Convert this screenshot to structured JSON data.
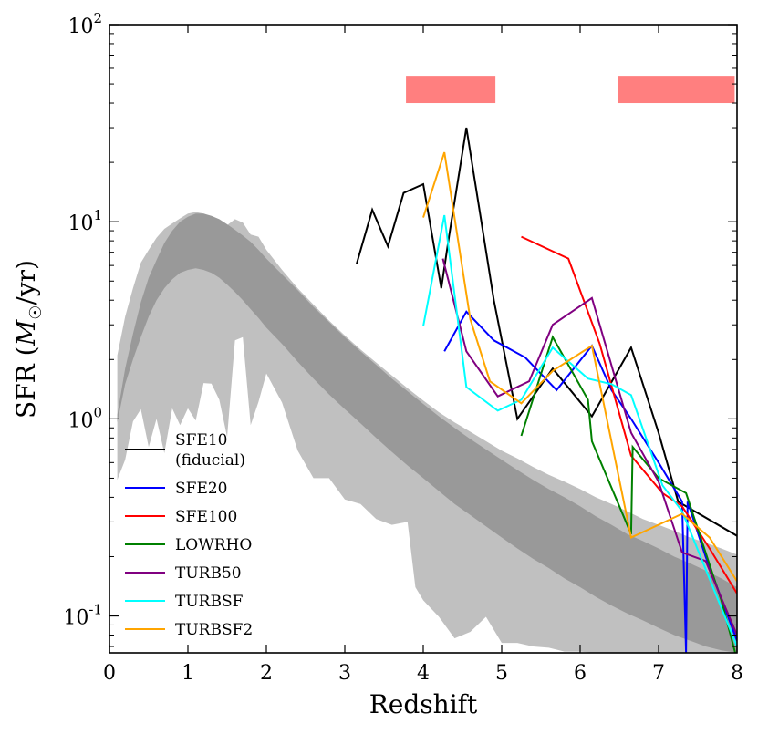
{
  "chart_data": {
    "type": "line",
    "title": "",
    "xlabel": "Redshift",
    "ylabel": "SFR (M☉/yr)",
    "ylabel_parts": {
      "prefix": "SFR",
      "open": "(",
      "symbol": "M",
      "subscript": "☉",
      "unit": "/yr)"
    },
    "xlim": [
      0,
      8
    ],
    "ylim": [
      0.065,
      100
    ],
    "yscale": "log",
    "grid": false,
    "legend_position": "lower-left",
    "x_ticks": [
      {
        "value": 0,
        "label": "0"
      },
      {
        "value": 1,
        "label": "1"
      },
      {
        "value": 2,
        "label": "2"
      },
      {
        "value": 3,
        "label": "3"
      },
      {
        "value": 4,
        "label": "4"
      },
      {
        "value": 5,
        "label": "5"
      },
      {
        "value": 6,
        "label": "6"
      },
      {
        "value": 7,
        "label": "7"
      },
      {
        "value": 8,
        "label": "8"
      }
    ],
    "y_ticks": [
      {
        "value": 0.1,
        "base": "10",
        "exp": "-1"
      },
      {
        "value": 1,
        "base": "10",
        "exp": "0"
      },
      {
        "value": 10,
        "base": "10",
        "exp": "1"
      },
      {
        "value": 100,
        "base": "10",
        "exp": "2"
      }
    ],
    "observation_bars": [
      {
        "x0": 3.78,
        "x1": 4.92,
        "y_low": 40,
        "y_high": 55,
        "color": "#ff7f7f"
      },
      {
        "x0": 6.48,
        "x1": 7.97,
        "y_low": 40,
        "y_high": 55,
        "color": "#ff7f7f"
      }
    ],
    "bands": [
      {
        "name": "outer-band",
        "color": "#c0c0c0",
        "upper": [
          [
            0.1,
            2.1
          ],
          [
            0.2,
            3.3
          ],
          [
            0.3,
            4.6
          ],
          [
            0.4,
            6.2
          ],
          [
            0.5,
            7.2
          ],
          [
            0.6,
            8.3
          ],
          [
            0.7,
            9.2
          ],
          [
            0.8,
            9.8
          ],
          [
            0.9,
            10.4
          ],
          [
            1.0,
            11.0
          ],
          [
            1.1,
            11.2
          ],
          [
            1.2,
            11.0
          ],
          [
            1.3,
            10.6
          ],
          [
            1.4,
            10.0
          ],
          [
            1.5,
            9.6
          ],
          [
            1.6,
            10.3
          ],
          [
            1.7,
            9.9
          ],
          [
            1.8,
            8.6
          ],
          [
            1.9,
            8.4
          ],
          [
            2.0,
            7.2
          ],
          [
            2.2,
            5.7
          ],
          [
            2.4,
            4.6
          ],
          [
            2.6,
            3.8
          ],
          [
            2.8,
            3.15
          ],
          [
            3.0,
            2.65
          ],
          [
            3.2,
            2.25
          ],
          [
            3.4,
            1.93
          ],
          [
            3.6,
            1.66
          ],
          [
            3.8,
            1.43
          ],
          [
            4.0,
            1.24
          ],
          [
            4.2,
            1.08
          ],
          [
            4.4,
            0.96
          ],
          [
            4.6,
            0.86
          ],
          [
            4.8,
            0.77
          ],
          [
            5.0,
            0.69
          ],
          [
            5.2,
            0.63
          ],
          [
            5.4,
            0.57
          ],
          [
            5.6,
            0.52
          ],
          [
            5.8,
            0.48
          ],
          [
            6.0,
            0.44
          ],
          [
            6.2,
            0.4
          ],
          [
            6.4,
            0.37
          ],
          [
            6.6,
            0.34
          ],
          [
            6.8,
            0.31
          ],
          [
            7.0,
            0.29
          ],
          [
            7.2,
            0.27
          ],
          [
            7.4,
            0.25
          ],
          [
            7.6,
            0.235
          ],
          [
            7.8,
            0.22
          ],
          [
            8.0,
            0.205
          ]
        ],
        "lower": [
          [
            0.1,
            0.49
          ],
          [
            0.2,
            0.62
          ],
          [
            0.3,
            0.97
          ],
          [
            0.4,
            1.12
          ],
          [
            0.5,
            0.72
          ],
          [
            0.6,
            1.0
          ],
          [
            0.7,
            0.67
          ],
          [
            0.8,
            1.13
          ],
          [
            0.9,
            0.93
          ],
          [
            1.0,
            1.13
          ],
          [
            1.1,
            0.98
          ],
          [
            1.2,
            1.52
          ],
          [
            1.3,
            1.51
          ],
          [
            1.4,
            1.25
          ],
          [
            1.5,
            0.81
          ],
          [
            1.6,
            2.5
          ],
          [
            1.7,
            2.6
          ],
          [
            1.8,
            0.93
          ],
          [
            1.9,
            1.22
          ],
          [
            2.0,
            1.7
          ],
          [
            2.2,
            1.21
          ],
          [
            2.4,
            0.69
          ],
          [
            2.6,
            0.5
          ],
          [
            2.8,
            0.5
          ],
          [
            3.0,
            0.39
          ],
          [
            3.2,
            0.37
          ],
          [
            3.4,
            0.31
          ],
          [
            3.6,
            0.29
          ],
          [
            3.8,
            0.3
          ],
          [
            3.9,
            0.14
          ],
          [
            4.0,
            0.12
          ],
          [
            4.2,
            0.099
          ],
          [
            4.4,
            0.077
          ],
          [
            4.6,
            0.083
          ],
          [
            4.8,
            0.099
          ],
          [
            5.0,
            0.073
          ],
          [
            5.2,
            0.073
          ],
          [
            5.4,
            0.07
          ],
          [
            5.6,
            0.069
          ],
          [
            5.8,
            0.066
          ],
          [
            6.0,
            0.066
          ],
          [
            6.2,
            0.065
          ],
          [
            6.4,
            0.065
          ],
          [
            6.6,
            0.065
          ],
          [
            7.0,
            0.065
          ],
          [
            8.0,
            0.065
          ]
        ]
      },
      {
        "name": "inner-band",
        "color": "#999999",
        "upper": [
          [
            0.1,
            1.05
          ],
          [
            0.2,
            1.8
          ],
          [
            0.3,
            2.7
          ],
          [
            0.4,
            3.9
          ],
          [
            0.5,
            5.2
          ],
          [
            0.6,
            6.4
          ],
          [
            0.7,
            7.8
          ],
          [
            0.8,
            9.0
          ],
          [
            0.9,
            10.0
          ],
          [
            1.0,
            10.6
          ],
          [
            1.1,
            11.0
          ],
          [
            1.2,
            11.0
          ],
          [
            1.3,
            10.7
          ],
          [
            1.4,
            10.3
          ],
          [
            1.5,
            9.7
          ],
          [
            1.6,
            9.1
          ],
          [
            1.7,
            8.5
          ],
          [
            1.8,
            7.9
          ],
          [
            1.9,
            7.2
          ],
          [
            2.0,
            6.5
          ],
          [
            2.2,
            5.4
          ],
          [
            2.4,
            4.5
          ],
          [
            2.6,
            3.7
          ],
          [
            2.8,
            3.1
          ],
          [
            3.0,
            2.6
          ],
          [
            3.2,
            2.2
          ],
          [
            3.4,
            1.88
          ],
          [
            3.6,
            1.6
          ],
          [
            3.8,
            1.38
          ],
          [
            4.0,
            1.19
          ],
          [
            4.2,
            1.03
          ],
          [
            4.4,
            0.9
          ],
          [
            4.6,
            0.79
          ],
          [
            4.8,
            0.7
          ],
          [
            5.0,
            0.62
          ],
          [
            5.2,
            0.55
          ],
          [
            5.4,
            0.49
          ],
          [
            5.6,
            0.44
          ],
          [
            5.8,
            0.4
          ],
          [
            6.0,
            0.36
          ],
          [
            6.2,
            0.32
          ],
          [
            6.4,
            0.29
          ],
          [
            6.6,
            0.26
          ],
          [
            6.8,
            0.24
          ],
          [
            7.0,
            0.22
          ],
          [
            7.2,
            0.2
          ],
          [
            7.4,
            0.185
          ],
          [
            7.6,
            0.17
          ],
          [
            7.8,
            0.155
          ],
          [
            8.0,
            0.14
          ]
        ],
        "lower": [
          [
            0.1,
            0.96
          ],
          [
            0.2,
            1.5
          ],
          [
            0.3,
            2.0
          ],
          [
            0.4,
            2.6
          ],
          [
            0.5,
            3.3
          ],
          [
            0.6,
            4.0
          ],
          [
            0.7,
            4.6
          ],
          [
            0.8,
            5.1
          ],
          [
            0.9,
            5.5
          ],
          [
            1.0,
            5.7
          ],
          [
            1.1,
            5.8
          ],
          [
            1.2,
            5.7
          ],
          [
            1.3,
            5.5
          ],
          [
            1.4,
            5.2
          ],
          [
            1.5,
            4.8
          ],
          [
            1.6,
            4.4
          ],
          [
            1.7,
            4.0
          ],
          [
            1.8,
            3.6
          ],
          [
            1.9,
            3.25
          ],
          [
            2.0,
            2.9
          ],
          [
            2.2,
            2.4
          ],
          [
            2.4,
            1.95
          ],
          [
            2.6,
            1.6
          ],
          [
            2.8,
            1.33
          ],
          [
            3.0,
            1.12
          ],
          [
            3.2,
            0.95
          ],
          [
            3.4,
            0.8
          ],
          [
            3.6,
            0.68
          ],
          [
            3.8,
            0.58
          ],
          [
            4.0,
            0.5
          ],
          [
            4.2,
            0.43
          ],
          [
            4.4,
            0.37
          ],
          [
            4.6,
            0.325
          ],
          [
            4.8,
            0.285
          ],
          [
            5.0,
            0.25
          ],
          [
            5.2,
            0.22
          ],
          [
            5.4,
            0.195
          ],
          [
            5.6,
            0.175
          ],
          [
            5.8,
            0.155
          ],
          [
            6.0,
            0.14
          ],
          [
            6.2,
            0.125
          ],
          [
            6.4,
            0.113
          ],
          [
            6.6,
            0.103
          ],
          [
            6.8,
            0.095
          ],
          [
            7.0,
            0.087
          ],
          [
            7.2,
            0.08
          ],
          [
            7.4,
            0.075
          ],
          [
            7.6,
            0.07
          ],
          [
            7.8,
            0.067
          ],
          [
            8.0,
            0.065
          ]
        ]
      }
    ],
    "series": [
      {
        "name": "SFE10",
        "label_lines": [
          "SFE10",
          "(fiducial)"
        ],
        "color": "#000000",
        "points": [
          [
            3.15,
            6.1
          ],
          [
            3.35,
            11.5
          ],
          [
            3.55,
            7.5
          ],
          [
            3.75,
            14.0
          ],
          [
            4.0,
            15.5
          ],
          [
            4.23,
            4.6
          ],
          [
            4.33,
            8.5
          ],
          [
            4.55,
            30.0
          ],
          [
            4.9,
            4.0
          ],
          [
            5.2,
            1.0
          ],
          [
            5.65,
            1.8
          ],
          [
            6.15,
            1.03
          ],
          [
            6.65,
            2.3
          ],
          [
            7.0,
            0.85
          ],
          [
            7.25,
            0.38
          ],
          [
            8.0,
            0.255
          ]
        ]
      },
      {
        "name": "SFE20",
        "label_lines": [
          "SFE20"
        ],
        "color": "#0000ff",
        "points": [
          [
            4.27,
            2.2
          ],
          [
            4.55,
            3.5
          ],
          [
            4.9,
            2.5
          ],
          [
            5.3,
            2.05
          ],
          [
            5.7,
            1.4
          ],
          [
            6.15,
            2.35
          ],
          [
            6.4,
            1.4
          ],
          [
            6.65,
            1.0
          ],
          [
            7.0,
            0.6
          ],
          [
            7.3,
            0.38
          ],
          [
            7.35,
            0.065
          ],
          [
            7.37,
            0.38
          ],
          [
            7.6,
            0.2
          ],
          [
            8.0,
            0.075
          ]
        ]
      },
      {
        "name": "SFE100",
        "label_lines": [
          "SFE100"
        ],
        "color": "#ff0000",
        "points": [
          [
            5.25,
            8.4
          ],
          [
            5.85,
            6.5
          ],
          [
            6.25,
            2.4
          ],
          [
            6.65,
            0.65
          ],
          [
            7.05,
            0.42
          ],
          [
            7.3,
            0.36
          ],
          [
            7.65,
            0.22
          ],
          [
            8.0,
            0.13
          ]
        ]
      },
      {
        "name": "LOWRHO",
        "label_lines": [
          "LOWRHO"
        ],
        "color": "#008000",
        "points": [
          [
            5.25,
            0.82
          ],
          [
            5.65,
            2.6
          ],
          [
            6.1,
            1.25
          ],
          [
            6.15,
            0.77
          ],
          [
            6.65,
            0.26
          ],
          [
            6.67,
            0.72
          ],
          [
            7.0,
            0.5
          ],
          [
            7.35,
            0.42
          ],
          [
            7.8,
            0.12
          ],
          [
            8.0,
            0.06
          ]
        ]
      },
      {
        "name": "TURB50",
        "label_lines": [
          "TURB50"
        ],
        "color": "#800080",
        "points": [
          [
            4.25,
            6.5
          ],
          [
            4.55,
            2.2
          ],
          [
            4.95,
            1.3
          ],
          [
            5.35,
            1.55
          ],
          [
            5.65,
            3.0
          ],
          [
            6.15,
            4.1
          ],
          [
            6.65,
            0.85
          ],
          [
            7.0,
            0.48
          ],
          [
            7.3,
            0.21
          ],
          [
            7.6,
            0.19
          ],
          [
            8.0,
            0.08
          ]
        ]
      },
      {
        "name": "TURBSF",
        "label_lines": [
          "TURBSF"
        ],
        "color": "#00ffff",
        "points": [
          [
            4.0,
            2.95
          ],
          [
            4.27,
            10.8
          ],
          [
            4.55,
            1.45
          ],
          [
            4.95,
            1.1
          ],
          [
            5.25,
            1.25
          ],
          [
            5.65,
            2.3
          ],
          [
            6.1,
            1.6
          ],
          [
            6.4,
            1.5
          ],
          [
            6.65,
            1.32
          ],
          [
            7.05,
            0.46
          ],
          [
            7.3,
            0.34
          ],
          [
            8.0,
            0.07
          ]
        ]
      },
      {
        "name": "TURBSF2",
        "label_lines": [
          "TURBSF2"
        ],
        "color": "#ffa500",
        "points": [
          [
            4.0,
            10.5
          ],
          [
            4.27,
            22.5
          ],
          [
            4.6,
            3.2
          ],
          [
            4.85,
            1.55
          ],
          [
            5.25,
            1.2
          ],
          [
            5.65,
            1.75
          ],
          [
            6.15,
            2.35
          ],
          [
            6.65,
            0.25
          ],
          [
            7.3,
            0.33
          ],
          [
            7.65,
            0.25
          ],
          [
            8.0,
            0.15
          ]
        ]
      }
    ]
  }
}
